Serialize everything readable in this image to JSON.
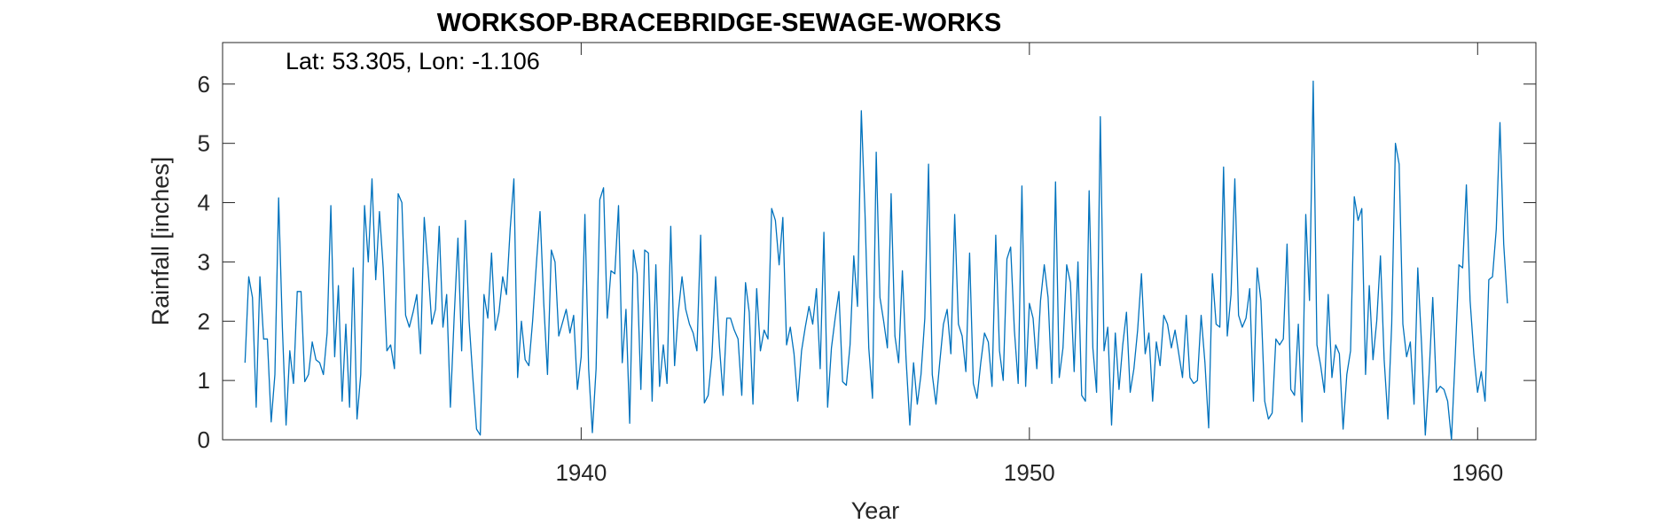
{
  "chart_data": {
    "type": "line",
    "title": "WORKSOP-BRACEBRIDGE-SEWAGE-WORKS",
    "annotation": "Lat: 53.305, Lon: -1.106",
    "xlabel": "Year",
    "ylabel": "Rainfall [inches]",
    "xlim": [
      1932,
      1961.3
    ],
    "ylim": [
      0,
      6.7
    ],
    "xticks": [
      1940,
      1950,
      1960
    ],
    "yticks": [
      0,
      1,
      2,
      3,
      4,
      5,
      6
    ],
    "grid": false,
    "line_color": "#0072BD",
    "series": [
      {
        "x_start": 1932.5,
        "x_step": 0.08333,
        "values": [
          1.3,
          2.75,
          2.4,
          0.55,
          2.75,
          1.7,
          1.7,
          0.3,
          1.1,
          4.08,
          1.9,
          0.25,
          1.5,
          0.95,
          2.5,
          2.5,
          0.98,
          1.1,
          1.65,
          1.35,
          1.3,
          1.1,
          1.8,
          3.95,
          1.4,
          2.6,
          0.65,
          1.95,
          0.55,
          2.9,
          0.35,
          1.1,
          3.95,
          3.0,
          4.4,
          2.7,
          3.85,
          2.9,
          1.5,
          1.6,
          1.2,
          4.15,
          4.0,
          2.1,
          1.9,
          2.15,
          2.45,
          1.45,
          3.75,
          2.9,
          1.95,
          2.2,
          3.6,
          1.9,
          2.45,
          0.55,
          2.05,
          3.4,
          1.5,
          3.7,
          2.0,
          1.05,
          0.18,
          0.08,
          2.45,
          2.05,
          3.15,
          1.85,
          2.15,
          2.75,
          2.45,
          3.55,
          4.4,
          1.05,
          2.0,
          1.35,
          1.25,
          2.0,
          2.95,
          3.85,
          2.3,
          1.1,
          3.2,
          3.0,
          1.75,
          null,
          2.2,
          1.8,
          2.1,
          0.85,
          1.4,
          3.8,
          1.2,
          0.12,
          1.2,
          4.05,
          4.25,
          2.05,
          2.85,
          2.8,
          3.95,
          1.3,
          2.2,
          0.28,
          3.2,
          2.8,
          0.85,
          3.2,
          3.15,
          0.65,
          2.95,
          0.9,
          1.6,
          0.95,
          3.6,
          1.25,
          2.15,
          2.75,
          2.2,
          1.95,
          1.8,
          1.5,
          3.45,
          0.62,
          0.75,
          1.4,
          2.75,
          1.6,
          0.75,
          2.05,
          2.05,
          1.85,
          1.7,
          0.75,
          2.65,
          2.15,
          0.6,
          2.55,
          1.5,
          1.85,
          1.7,
          3.9,
          3.7,
          2.95,
          3.75,
          1.6,
          1.9,
          1.45,
          0.65,
          1.5,
          1.9,
          2.25,
          1.95,
          2.55,
          1.2,
          3.5,
          0.55,
          1.55,
          2.05,
          2.5,
          0.98,
          0.92,
          1.6,
          3.1,
          2.25,
          5.55,
          3.8,
          1.55,
          0.7,
          4.85,
          2.4,
          2.0,
          1.55,
          4.15,
          1.75,
          1.3,
          2.85,
          1.35,
          0.25,
          1.3,
          0.6,
          1.1,
          2.05,
          4.65,
          1.1,
          0.6,
          1.3,
          1.95,
          2.2,
          1.45,
          3.8,
          1.95,
          1.75,
          1.15,
          3.15,
          0.95,
          0.7,
          1.3,
          1.8,
          1.65,
          0.9,
          3.45,
          1.5,
          1.0,
          3.05,
          3.25,
          1.85,
          0.95,
          4.28,
          0.9,
          2.3,
          2.05,
          1.2,
          2.35,
          2.95,
          2.4,
          0.95,
          4.35,
          1.05,
          1.55,
          2.95,
          2.65,
          1.15,
          3.0,
          0.75,
          0.65,
          4.2,
          1.55,
          0.8,
          5.45,
          1.5,
          1.9,
          0.25,
          1.8,
          0.85,
          1.6,
          2.15,
          0.8,
          1.2,
          1.85,
          2.8,
          1.45,
          1.8,
          0.65,
          1.65,
          1.25,
          2.1,
          1.95,
          1.55,
          1.85,
          1.45,
          1.05,
          2.1,
          1.05,
          0.95,
          1.0,
          2.1,
          1.3,
          0.2,
          2.8,
          1.95,
          1.9,
          4.6,
          1.75,
          2.45,
          4.4,
          2.1,
          1.9,
          2.05,
          2.55,
          0.65,
          2.9,
          2.35,
          0.65,
          0.35,
          0.45,
          1.7,
          1.6,
          1.7,
          3.3,
          0.85,
          0.75,
          1.95,
          0.3,
          3.8,
          2.35,
          6.05,
          1.6,
          1.25,
          0.8,
          2.45,
          1.05,
          1.6,
          1.45,
          0.18,
          1.1,
          1.5,
          4.1,
          3.7,
          3.9,
          1.1,
          2.6,
          1.35,
          2.0,
          3.1,
          1.35,
          0.35,
          1.95,
          5.0,
          4.65,
          1.95,
          1.4,
          1.65,
          0.6,
          2.9,
          1.6,
          0.08,
          1.1,
          2.4,
          0.8,
          0.9,
          0.85,
          0.65,
          0.0,
          1.4,
          2.95,
          2.9,
          4.3,
          2.35,
          1.45,
          0.8,
          1.15,
          0.65,
          2.7,
          2.75,
          3.55,
          5.35,
          3.3,
          2.3
        ]
      }
    ]
  }
}
